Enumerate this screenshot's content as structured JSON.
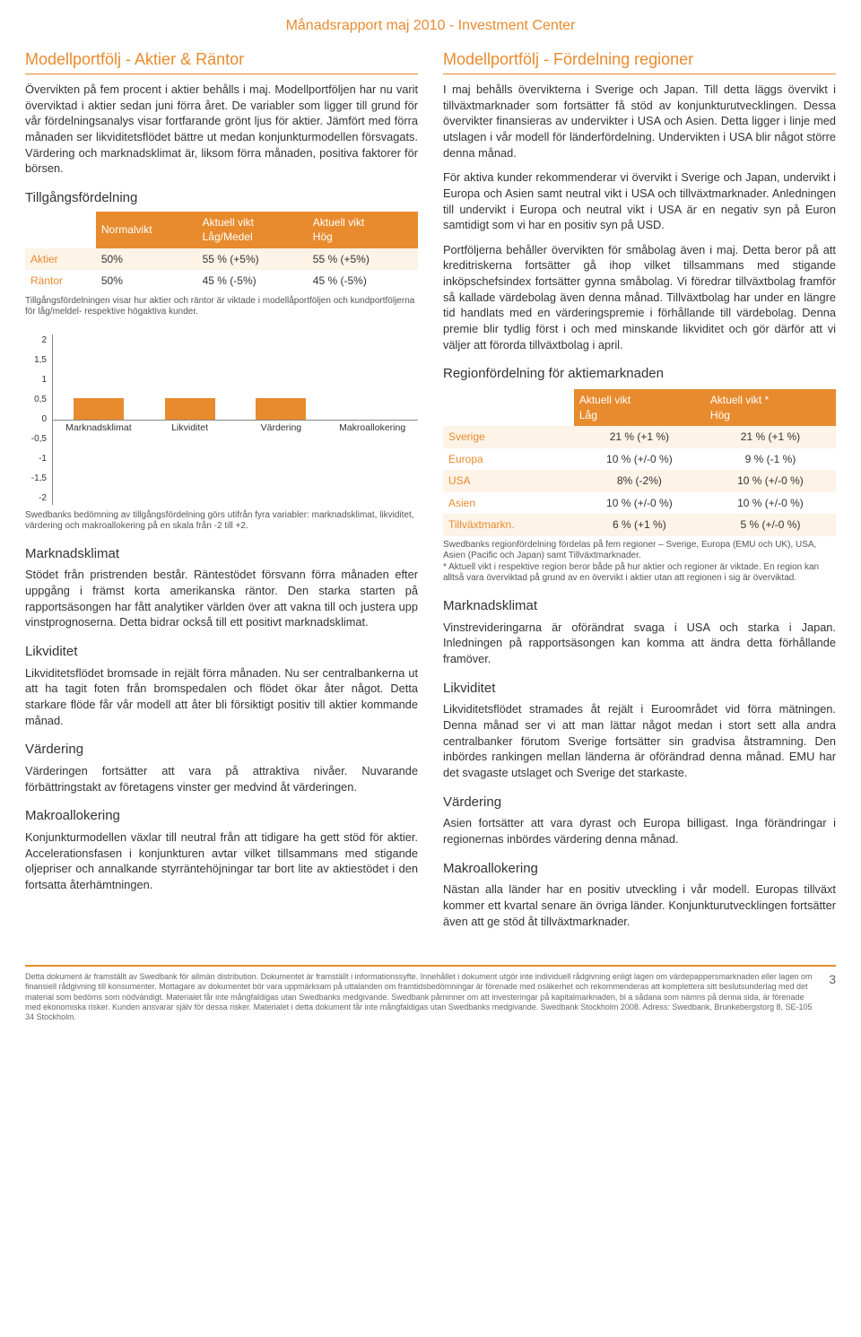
{
  "header": {
    "title": "Månadsrapport maj 2010 - Investment Center"
  },
  "left": {
    "title": "Modellportfölj - Aktier & Räntor",
    "intro": "Övervikten på fem procent i aktier behålls i maj. Modellportföljen har nu varit överviktad i aktier sedan juni förra året. De variabler som ligger till grund för vår fördelningsanalys visar fortfarande grönt ljus för aktier. Jämfört med förra månaden ser likviditetsflödet bättre ut medan konjunkturmodellen försvagats. Värdering och marknadsklimat är, liksom förra månaden, positiva faktorer för börsen.",
    "alloc": {
      "title": "Tillgångsfördelning",
      "head_normal": "Normalvikt",
      "head_low": "Aktuell vikt\nLåg/Medel",
      "head_high": "Aktuell vikt\nHög",
      "rows": [
        {
          "label": "Aktier",
          "normal": "50%",
          "low": "55 % (+5%)",
          "high": "55 % (+5%)"
        },
        {
          "label": "Räntor",
          "normal": "50%",
          "low": "45 % (-5%)",
          "high": "45 % (-5%)"
        }
      ],
      "footnote": "Tillgångsfördelningen visar hur aktier och räntor är viktade i modellåportföljen och kundportföljerna för låg/meldel- respektive högaktiva kunder."
    },
    "chart": {
      "type": "bar",
      "ylim": [
        -2,
        2
      ],
      "ytick_step": 0.5,
      "bar_color": "#e88b2e",
      "axis_color": "#888888",
      "label_fontsize": 10.5,
      "bars": [
        {
          "label": "Marknadsklimat",
          "value": 0.5
        },
        {
          "label": "Likviditet",
          "value": 0.5
        },
        {
          "label": "Värdering",
          "value": 0.5
        },
        {
          "label": "Makroallokering",
          "value": 0.0
        }
      ],
      "footnote": "Swedbanks bedömning av tillgångsfördelning görs utifrån fyra variabler: marknadsklimat, likviditet, värdering och makroallokering på en skala från -2 till +2."
    },
    "sections": [
      {
        "title": "Marknadsklimat",
        "text": "Stödet från pristrenden består. Räntestödet försvann förra månaden efter uppgång i främst korta amerikanska räntor. Den starka starten på rapportsäsongen har fått analytiker världen över att vakna till och justera upp vinstprognoserna. Detta bidrar också till ett positivt marknadsklimat."
      },
      {
        "title": "Likviditet",
        "text": "Likviditetsflödet bromsade in rejält förra månaden. Nu ser centralbankerna ut att ha tagit foten från bromspedalen och flödet ökar åter något. Detta starkare flöde får vår modell att åter bli försiktigt positiv till aktier kommande månad."
      },
      {
        "title": "Värdering",
        "text": "Värderingen fortsätter att vara på attraktiva nivåer. Nuvarande förbättringstakt av företagens vinster ger medvind åt värderingen."
      },
      {
        "title": "Makroallokering",
        "text": "Konjunkturmodellen växlar till neutral från att tidigare ha gett stöd för aktier. Accelerationsfasen i konjunkturen avtar vilket tillsammans med stigande oljepriser och annalkande styrräntehöjningar tar bort lite av aktiestödet i den fortsatta återhämtningen."
      }
    ]
  },
  "right": {
    "title": "Modellportfölj - Fördelning regioner",
    "p1": "I maj behålls övervikterna i Sverige och Japan. Till detta läggs övervikt i tillväxtmarknader som fortsätter få stöd av konjunkturutvecklingen. Dessa övervikter finansieras av undervikter i USA och Asien. Detta ligger i linje med utslagen i vår modell för länderfördelning. Undervikten i USA blir något större denna månad.",
    "p2": "För aktiva kunder rekommenderar vi övervikt i Sverige och Japan, undervikt i Europa och Asien samt neutral vikt i USA och tillväxtmarknader. Anledningen till undervikt i Europa och neutral vikt i USA är en negativ syn på Euron samtidigt som vi har en positiv syn på USD.",
    "p3": "Portföljerna behåller övervikten för småbolag även i maj. Detta beror på att kreditriskerna fortsätter gå ihop vilket tillsammans med stigande inköpschefsindex fortsätter gynna småbolag. Vi föredrar tillväxtbolag framför så kallade värdebolag även denna månad. Tillväxtbolag har under en längre tid handlats med en värderingspremie i förhållande till värdebolag. Denna premie blir tydlig först i och med minskande likviditet och gör därför att vi väljer att förorda tillväxtbolag i april.",
    "region": {
      "title": "Regionfördelning för aktiemarknaden",
      "head_low": "Aktuell vikt\nLåg",
      "head_high": "Aktuell vikt *\nHög",
      "rows": [
        {
          "label": "Sverige",
          "low": "21 % (+1 %)",
          "high": "21 % (+1 %)"
        },
        {
          "label": "Europa",
          "low": "10 % (+/-0 %)",
          "high": "9 %  (-1 %)"
        },
        {
          "label": "USA",
          "low": "8% (-2%)",
          "high": "10 % (+/-0 %)"
        },
        {
          "label": "Asien",
          "low": "10 % (+/-0 %)",
          "high": "10 % (+/-0 %)"
        },
        {
          "label": "Tillväxtmarkn.",
          "low": "6 % (+1 %)",
          "high": "5 % (+/-0 %)"
        }
      ],
      "footnote": "Swedbanks regionfördelning fördelas på fem regioner – Sverige, Europa (EMU och UK), USA, Asien (Pacific och Japan) samt Tillväxtmarknader.\n* Aktuell vikt i respektive region beror både på hur aktier och regioner är viktade. En region kan alltså vara överviktad på grund av en övervikt i aktier utan att regionen i sig är överviktad."
    },
    "sections": [
      {
        "title": "Marknadsklimat",
        "text": "Vinstrevideringarna är oförändrat svaga i USA och starka i Japan. Inledningen på rapportsäsongen kan komma att ändra detta förhållande framöver."
      },
      {
        "title": "Likviditet",
        "text": "Likviditetsflödet stramades åt rejält i Euroområdet vid förra mätningen. Denna månad ser vi att man lättar något medan i stort sett alla andra centralbanker förutom Sverige fortsätter sin gradvisa åtstramning. Den inbördes rankingen mellan länderna är oförändrad denna månad. EMU har det svagaste utslaget och Sverige det starkaste."
      },
      {
        "title": "Värdering",
        "text": "Asien fortsätter att vara dyrast och Europa billigast. Inga förändringar i regionernas inbördes värdering denna månad."
      },
      {
        "title": "Makroallokering",
        "text": "Nästan alla länder har en positiv utveckling i vår modell. Europas tillväxt kommer ett kvartal senare än övriga länder. Konjunkturutvecklingen fortsätter även att ge stöd åt tillväxtmarknader."
      }
    ]
  },
  "footer": {
    "text": "Detta dokument är framställt av Swedbank för allmän distribution. Dokumentet är framställt i informationssyfte. Innehållet i dokument utgör inte individuell rådgivning enligt lagen om värdepappersmarknaden eller lagen om finansiell rådgivning till konsumenter. Mottagare av dokumentet bör vara uppmärksam på uttalanden om framtidsbedömningar är förenade med osäkerhet och rekommenderas att komplettera sitt beslutsunderlag med det material som bedöms som nödvändigt. Materialet får inte mångfaldigas utan Swedbanks medgivande. Swedbank påminner om att investeringar på kapitalmarknaden, bl a sådana som nämns på denna sida, är förenade med ekonomiska risker. Kunden ansvarar själv för dessa risker. Materialet i detta dokument får inte mångfaldigas utan Swedbanks medgivande. Swedbank Stockholm 2008. Adress: Swedbank, Brunkebergstorg 8, SE-105 34 Stockholm.",
    "page_number": "3"
  },
  "style": {
    "accent": "#e88b2e",
    "row_alt_bg": "#fdf3e7",
    "text_color": "#333333",
    "footnote_color": "#555555"
  }
}
